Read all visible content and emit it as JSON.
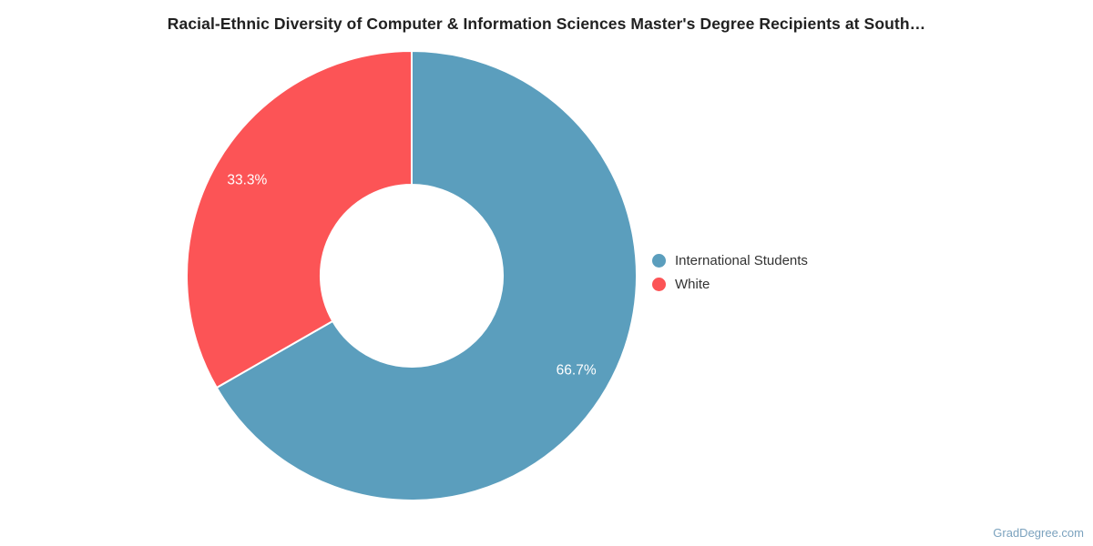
{
  "title": "Racial-Ethnic Diversity of Computer & Information Sciences Master's Degree Recipients at South…",
  "watermark": {
    "text": "GradDegree.com"
  },
  "colors": {
    "background": "#ffffff",
    "title_text": "#212121",
    "legend_text": "#333333",
    "slice_label_text": "#ffffff",
    "watermark_text": "#7BA2BE",
    "separator": "#ffffff"
  },
  "chart_data": {
    "type": "pie",
    "subtype": "donut",
    "title": "Racial-Ethnic Diversity of Computer & Information Sciences Master's Degree Recipients at South…",
    "categories": [
      "International Students",
      "White"
    ],
    "values": [
      66.7,
      33.3
    ],
    "value_labels": [
      "66.7%",
      "33.3%"
    ],
    "slice_colors": [
      "#5B9EBD",
      "#FC5456"
    ],
    "start_angle_deg": 0,
    "direction": "clockwise",
    "inner_radius_ratio": 0.405,
    "label_position": "inside",
    "legend_position": "right",
    "grid": false
  },
  "legend": {
    "items": [
      {
        "label": "International Students",
        "color": "#5B9EBD"
      },
      {
        "label": "White",
        "color": "#FC5456"
      }
    ]
  }
}
